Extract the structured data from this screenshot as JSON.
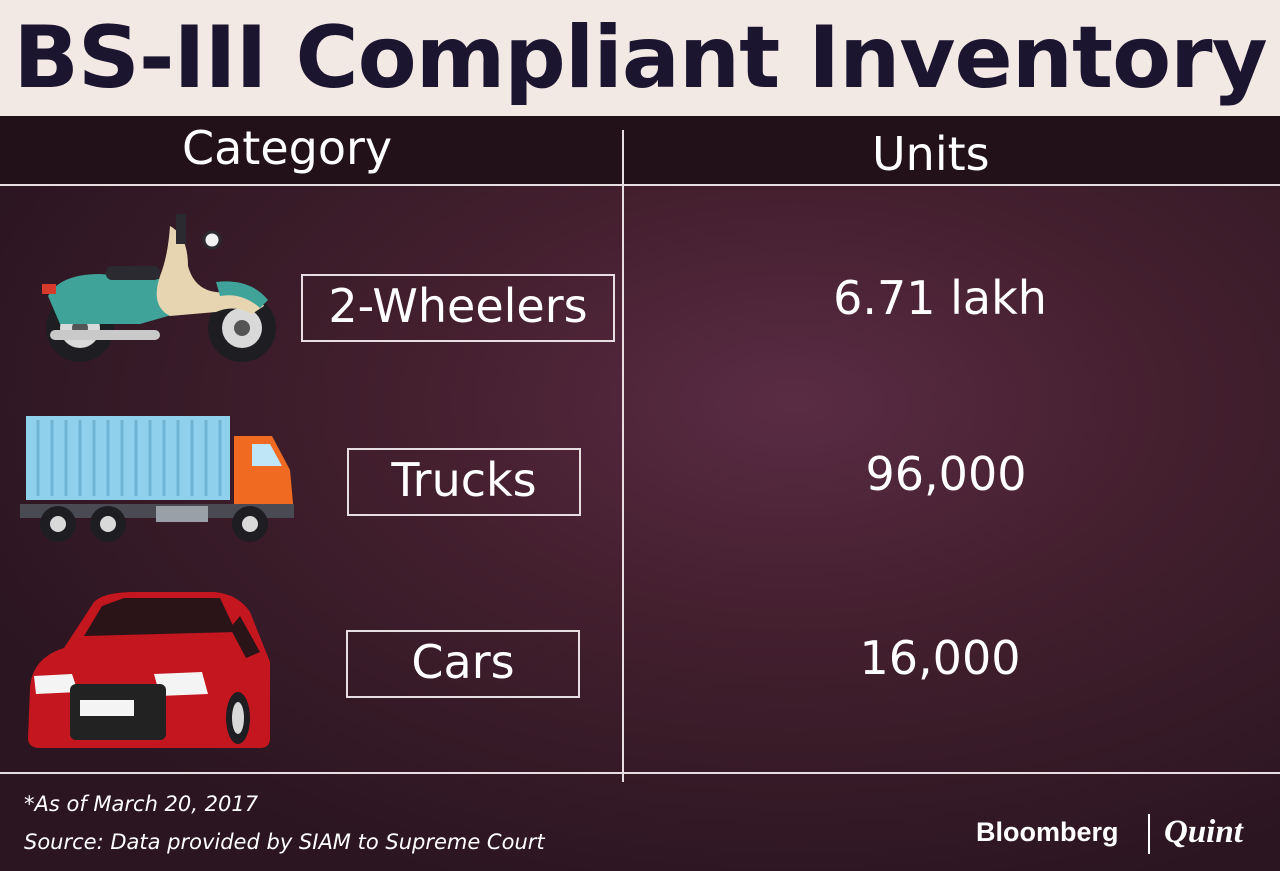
{
  "title": "BS-III Compliant Inventory",
  "columns": {
    "category": "Category",
    "units": "Units"
  },
  "chart_data": {
    "type": "table",
    "title": "BS-III Compliant Inventory",
    "columns": [
      "Category",
      "Units"
    ],
    "rows": [
      {
        "category": "2-Wheelers",
        "units": "6.71 lakh",
        "icon": "motorcycle-icon"
      },
      {
        "category": "Trucks",
        "units": "96,000",
        "icon": "truck-icon"
      },
      {
        "category": "Cars",
        "units": "16,000",
        "icon": "car-icon"
      }
    ]
  },
  "footer": {
    "note": "*As of March 20, 2017",
    "source": "Source: Data provided by SIAM to Supreme Court"
  },
  "brand": {
    "left": "Bloomberg",
    "right": "Quint"
  },
  "colors": {
    "title_bg": "#f2e8e4",
    "title_text": "#1c1530",
    "background": "#45202f",
    "motorcycle": "#3fa39a",
    "truck_container": "#8fd0ec",
    "truck_cab": "#f06a22",
    "car": "#c4161f"
  }
}
